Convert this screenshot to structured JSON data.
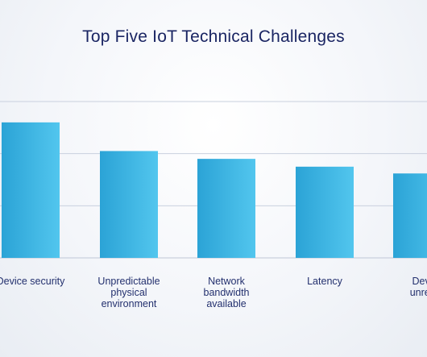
{
  "chart_data": {
    "type": "bar",
    "title": "Top Five IoT  Technical Challenges",
    "categories": [
      "Device security",
      "Unpredictable physical environment",
      "Network bandwidth available",
      "Latency",
      "Device unreliability"
    ],
    "category_lines": [
      [
        "Device security"
      ],
      [
        "Unpredictable",
        "physical",
        "environment"
      ],
      [
        "Network",
        "bandwidth",
        "available"
      ],
      [
        "Latency"
      ],
      [
        "Devi",
        "unreli"
      ]
    ],
    "values": [
      26,
      20.5,
      19,
      17.5,
      16.2
    ],
    "ylim": [
      0,
      30
    ],
    "grid": true,
    "xlabel": "",
    "ylabel": "",
    "colors": {
      "bar_start": "#2ba3d6",
      "bar_end": "#52c6ee",
      "grid": "#c9d0de",
      "axis": "#bfc6d6",
      "title": "#1a2563"
    }
  }
}
